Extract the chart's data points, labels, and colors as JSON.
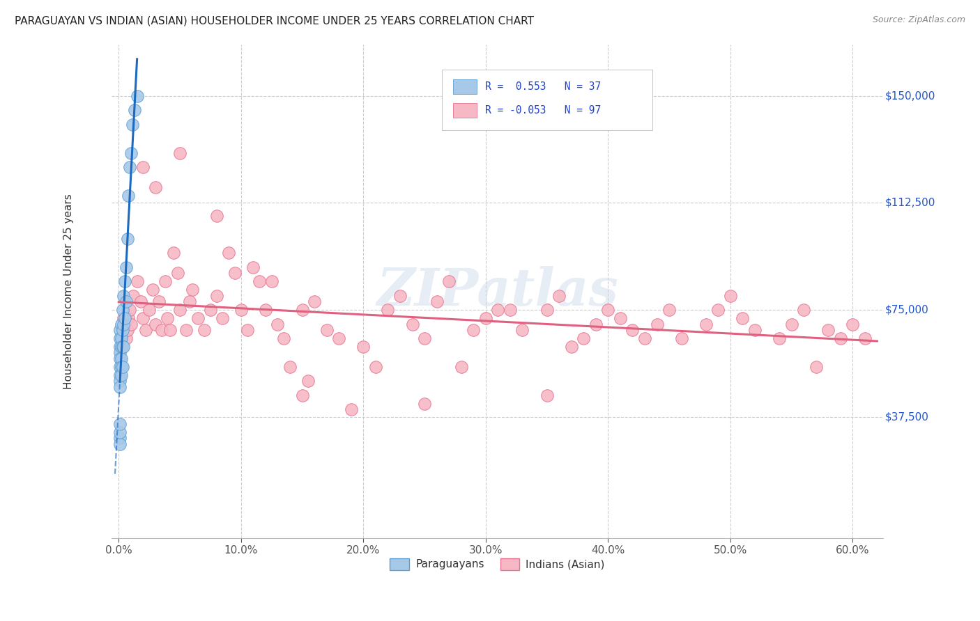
{
  "title": "PARAGUAYAN VS INDIAN (ASIAN) HOUSEHOLDER INCOME UNDER 25 YEARS CORRELATION CHART",
  "source": "Source: ZipAtlas.com",
  "ylabel": "Householder Income Under 25 years",
  "xlabel_ticks": [
    "0.0%",
    "10.0%",
    "20.0%",
    "30.0%",
    "40.0%",
    "50.0%",
    "60.0%"
  ],
  "xlabel_vals": [
    0.0,
    0.1,
    0.2,
    0.3,
    0.4,
    0.5,
    0.6
  ],
  "ytick_labels": [
    "$37,500",
    "$75,000",
    "$112,500",
    "$150,000"
  ],
  "ytick_vals": [
    37500,
    75000,
    112500,
    150000
  ],
  "ylim": [
    -5000,
    168000
  ],
  "xlim": [
    -0.006,
    0.625
  ],
  "watermark": "ZIPatlas",
  "para_color": "#a8c8e8",
  "para_edge_color": "#5a9fd4",
  "para_line_color": "#1a6abf",
  "indian_color": "#f5b8c4",
  "indian_edge_color": "#e87090",
  "indian_line_color": "#e06080",
  "para_scatter_x": [
    0.001,
    0.001,
    0.001,
    0.001,
    0.001,
    0.001,
    0.001,
    0.001,
    0.001,
    0.002,
    0.002,
    0.002,
    0.002,
    0.002,
    0.002,
    0.003,
    0.003,
    0.003,
    0.003,
    0.004,
    0.004,
    0.004,
    0.005,
    0.005,
    0.006,
    0.006,
    0.007,
    0.008,
    0.009,
    0.01,
    0.011,
    0.013,
    0.015,
    0.001,
    0.001,
    0.001,
    0.001
  ],
  "para_scatter_y": [
    68000,
    65000,
    62000,
    60000,
    58000,
    55000,
    52000,
    50000,
    48000,
    70000,
    65000,
    62000,
    58000,
    55000,
    52000,
    75000,
    68000,
    62000,
    55000,
    80000,
    70000,
    62000,
    85000,
    72000,
    90000,
    78000,
    100000,
    115000,
    125000,
    130000,
    140000,
    145000,
    150000,
    30000,
    28000,
    32000,
    35000
  ],
  "indian_scatter_x": [
    0.002,
    0.003,
    0.004,
    0.005,
    0.006,
    0.007,
    0.008,
    0.009,
    0.01,
    0.012,
    0.015,
    0.018,
    0.02,
    0.022,
    0.025,
    0.028,
    0.03,
    0.033,
    0.035,
    0.038,
    0.04,
    0.042,
    0.045,
    0.048,
    0.05,
    0.055,
    0.058,
    0.06,
    0.065,
    0.07,
    0.075,
    0.08,
    0.085,
    0.09,
    0.095,
    0.1,
    0.105,
    0.11,
    0.115,
    0.12,
    0.125,
    0.13,
    0.135,
    0.14,
    0.15,
    0.155,
    0.16,
    0.17,
    0.18,
    0.19,
    0.2,
    0.21,
    0.22,
    0.23,
    0.24,
    0.25,
    0.26,
    0.27,
    0.28,
    0.29,
    0.3,
    0.31,
    0.32,
    0.33,
    0.35,
    0.36,
    0.37,
    0.38,
    0.39,
    0.4,
    0.41,
    0.42,
    0.43,
    0.44,
    0.45,
    0.46,
    0.48,
    0.49,
    0.5,
    0.51,
    0.52,
    0.54,
    0.55,
    0.56,
    0.57,
    0.58,
    0.59,
    0.6,
    0.61,
    0.02,
    0.03,
    0.05,
    0.08,
    0.15,
    0.25,
    0.35
  ],
  "indian_scatter_y": [
    65000,
    68000,
    72000,
    70000,
    65000,
    68000,
    72000,
    75000,
    70000,
    80000,
    85000,
    78000,
    72000,
    68000,
    75000,
    82000,
    70000,
    78000,
    68000,
    85000,
    72000,
    68000,
    95000,
    88000,
    75000,
    68000,
    78000,
    82000,
    72000,
    68000,
    75000,
    80000,
    72000,
    95000,
    88000,
    75000,
    68000,
    90000,
    85000,
    75000,
    85000,
    70000,
    65000,
    55000,
    75000,
    50000,
    78000,
    68000,
    65000,
    40000,
    62000,
    55000,
    75000,
    80000,
    70000,
    65000,
    78000,
    85000,
    55000,
    68000,
    72000,
    75000,
    75000,
    68000,
    75000,
    80000,
    62000,
    65000,
    70000,
    75000,
    72000,
    68000,
    65000,
    70000,
    75000,
    65000,
    70000,
    75000,
    80000,
    72000,
    68000,
    65000,
    70000,
    75000,
    55000,
    68000,
    65000,
    70000,
    65000,
    125000,
    118000,
    130000,
    108000,
    45000,
    42000,
    45000
  ],
  "para_line_x0": -0.003,
  "para_line_x1": 0.016,
  "para_line_y0": 150000,
  "para_line_y1": 50000,
  "indian_line_x0": 0.0,
  "indian_line_x1": 0.62,
  "indian_line_y0": 73000,
  "indian_line_y1": 68000
}
